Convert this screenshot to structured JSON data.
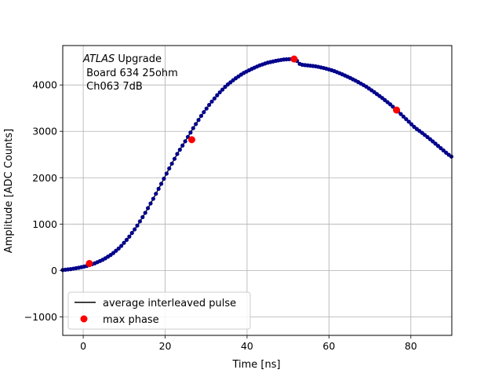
{
  "chart_data": {
    "type": "line",
    "title": "",
    "xlabel": "Time [ns]",
    "ylabel": "Amplitude [ADC Counts]",
    "xlim": [
      -5,
      90
    ],
    "ylim": [
      -1400,
      4850
    ],
    "xticks": [
      0,
      20,
      40,
      60,
      80
    ],
    "yticks": [
      -1000,
      0,
      1000,
      2000,
      3000,
      4000
    ],
    "xtick_labels": [
      "0",
      "20",
      "40",
      "60",
      "80"
    ],
    "ytick_labels": [
      "−1000",
      "0",
      "1000",
      "2000",
      "3000",
      "4000"
    ],
    "grid": true,
    "legend_position": "lower-left",
    "annotation": {
      "line1_italic": "ATLAS",
      "line1_rest": " Upgrade",
      "line2": " Board 634 25ohm",
      "line3": " Ch063 7dB"
    },
    "series": [
      {
        "name": "average interleaved pulse",
        "color": "#000000",
        "marker_color": "#00008b",
        "x": [
          -5,
          -3,
          -1,
          1,
          3,
          5,
          7,
          9,
          11,
          13,
          15,
          17,
          19,
          21,
          23,
          25,
          27,
          29,
          31,
          33,
          35,
          37,
          39,
          41,
          43,
          45,
          47,
          49,
          51,
          52,
          53,
          55,
          57,
          59,
          61,
          63,
          65,
          67,
          69,
          71,
          73,
          75,
          77,
          79,
          81,
          83,
          85,
          87,
          89,
          90
        ],
        "y": [
          10,
          30,
          60,
          100,
          160,
          240,
          350,
          500,
          700,
          940,
          1220,
          1530,
          1860,
          2200,
          2520,
          2800,
          3090,
          3360,
          3600,
          3810,
          3990,
          4130,
          4250,
          4340,
          4420,
          4480,
          4520,
          4550,
          4560,
          4540,
          4440,
          4420,
          4400,
          4360,
          4310,
          4240,
          4160,
          4070,
          3970,
          3850,
          3720,
          3580,
          3420,
          3250,
          3080,
          2950,
          2810,
          2660,
          2510,
          2450
        ]
      },
      {
        "name": "max phase",
        "color": "#ff0000",
        "x": [
          1.5,
          26.5,
          51.5,
          76.5
        ],
        "y": [
          150,
          2820,
          4560,
          3460
        ]
      }
    ]
  }
}
